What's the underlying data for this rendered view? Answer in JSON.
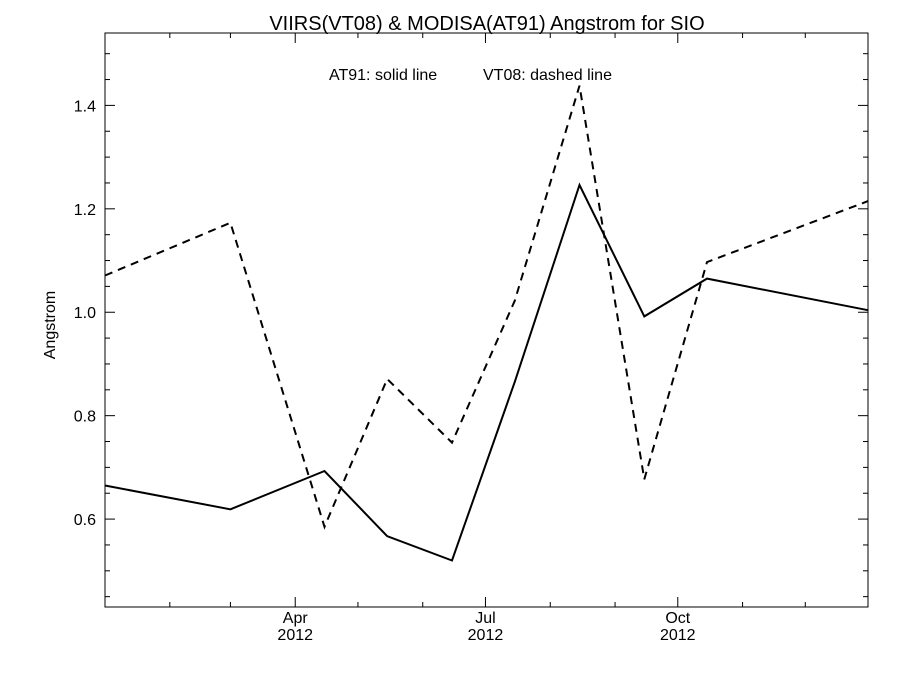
{
  "chart_data": {
    "type": "line",
    "title": "VIIRS(VT08) & MODISA(AT91)  Angstrom for SIO",
    "xlabel": "",
    "ylabel": "Angstrom",
    "legend_text": {
      "part1": "AT91: solid line",
      "part2": "VT08: dashed line"
    },
    "x_ticks": [
      {
        "month": "Apr",
        "year": "2012",
        "date": "2012-04-01"
      },
      {
        "month": "Jul",
        "year": "2012",
        "date": "2012-07-01"
      },
      {
        "month": "Oct",
        "year": "2012",
        "date": "2012-10-01"
      }
    ],
    "x_range": [
      "2012-01-01",
      "2012-12-31"
    ],
    "ylim": [
      0.43,
      1.54
    ],
    "y_ticks": [
      "0.6",
      "0.8",
      "1.0",
      "1.2",
      "1.4"
    ],
    "series": [
      {
        "name": "AT91",
        "style": "solid",
        "color": "#000000",
        "points": [
          {
            "x": "2012-01-01",
            "y": 0.665
          },
          {
            "x": "2012-03-01",
            "y": 0.619
          },
          {
            "x": "2012-04-15",
            "y": 0.693
          },
          {
            "x": "2012-05-15",
            "y": 0.567
          },
          {
            "x": "2012-06-15",
            "y": 0.52
          },
          {
            "x": "2012-07-15",
            "y": 0.865
          },
          {
            "x": "2012-08-15",
            "y": 1.246
          },
          {
            "x": "2012-09-15",
            "y": 0.992
          },
          {
            "x": "2012-10-15",
            "y": 1.065
          },
          {
            "x": "2012-12-31",
            "y": 1.004
          }
        ]
      },
      {
        "name": "VT08",
        "style": "dashed",
        "color": "#000000",
        "points": [
          {
            "x": "2012-01-01",
            "y": 1.071
          },
          {
            "x": "2012-03-01",
            "y": 1.173
          },
          {
            "x": "2012-04-15",
            "y": 0.585
          },
          {
            "x": "2012-05-15",
            "y": 0.871
          },
          {
            "x": "2012-06-15",
            "y": 0.748
          },
          {
            "x": "2012-07-15",
            "y": 1.022
          },
          {
            "x": "2012-08-15",
            "y": 1.438
          },
          {
            "x": "2012-09-15",
            "y": 0.677
          },
          {
            "x": "2012-10-15",
            "y": 1.097
          },
          {
            "x": "2012-12-31",
            "y": 1.215
          }
        ]
      }
    ]
  }
}
